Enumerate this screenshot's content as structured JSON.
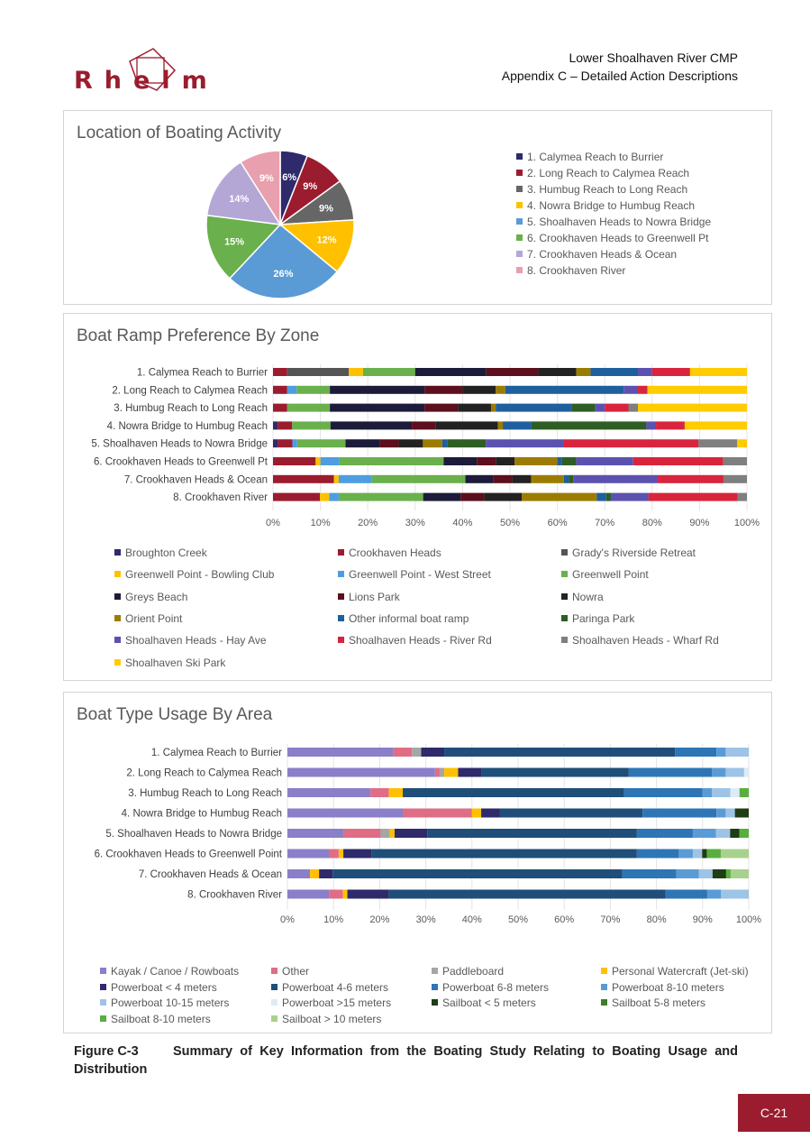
{
  "header": {
    "logo_text": "Rhelm",
    "doc_title": "Lower Shoalhaven River CMP",
    "doc_subtitle": "Appendix C – Detailed Action Descriptions"
  },
  "colors": {
    "brand": "#9b1c2e",
    "ramp": [
      "#2e2a6b",
      "#9b1c2e",
      "#555555",
      "#ffc000",
      "#4d9de0",
      "#6ab04c",
      "#1c1c3a",
      "#5c0f1c",
      "#222222",
      "#9c7c00",
      "#1f5f9e",
      "#2e5e23",
      "#5b52b0",
      "#d9243d",
      "#7f7f7f",
      "#ffcc00"
    ],
    "boat": [
      "#8a7fc8",
      "#e06d86",
      "#a6a6a6",
      "#ffc000",
      "#2e2a6b",
      "#1f4e79",
      "#2e75b6",
      "#5b9bd5",
      "#9dc3e6",
      "#ddebf7",
      "#1e3d14",
      "#3e7d2a",
      "#5aae3f",
      "#a9d18e"
    ]
  },
  "chart_data": [
    {
      "type": "pie",
      "title": "Location of Boating Activity",
      "categories": [
        "1. Calymea Reach to Burrier",
        "2. Long Reach to Calymea Reach",
        "3. Humbug Reach to Long Reach",
        "4. Nowra Bridge to Humbug Reach",
        "5. Shoalhaven Heads to Nowra Bridge",
        "6. Crookhaven Heads to Greenwell Pt",
        "7. Crookhaven Heads & Ocean",
        "8. Crookhaven River"
      ],
      "values": [
        6,
        9,
        9,
        12,
        26,
        15,
        14,
        9
      ],
      "data_labels": [
        "6%",
        "9%",
        "9%",
        "12%",
        "26%",
        "15%",
        "14%",
        "9%"
      ],
      "colors": [
        "#2e2a6b",
        "#9b1c2e",
        "#666666",
        "#ffc000",
        "#5b9bd5",
        "#6ab04c",
        "#b4a7d6",
        "#e8a0ae"
      ],
      "legend": "right"
    },
    {
      "type": "bar",
      "orientation": "horizontal",
      "stacked": "percent",
      "title": "Boat Ramp Preference By Zone",
      "categories": [
        "1. Calymea Reach to Burrier",
        "2. Long Reach to Calymea Reach",
        "3. Humbug Reach to Long Reach",
        "4. Nowra Bridge to Humbug Reach",
        "5. Shoalhaven Heads to Nowra Bridge",
        "6. Crookhaven Heads to Greenwell Pt",
        "7. Crookhaven Heads & Ocean",
        "8. Crookhaven River"
      ],
      "xticks": [
        "0%",
        "10%",
        "20%",
        "30%",
        "40%",
        "50%",
        "60%",
        "70%",
        "80%",
        "90%",
        "100%"
      ],
      "xlim": [
        0,
        100
      ],
      "legend": "bottom",
      "series": [
        {
          "name": "Broughton Creek",
          "values": [
            0,
            0,
            0,
            1,
            1,
            0,
            0,
            0
          ]
        },
        {
          "name": "Crookhaven Heads",
          "values": [
            3,
            3,
            3,
            3,
            3,
            9,
            13,
            10
          ]
        },
        {
          "name": "Grady's Riverside Retreat",
          "values": [
            13,
            0,
            0,
            0,
            0,
            0,
            0,
            0
          ]
        },
        {
          "name": "Greenwell Point - Bowling Club",
          "values": [
            3,
            0,
            0,
            0,
            0,
            1,
            1,
            2
          ]
        },
        {
          "name": "Greenwell Point - West Street",
          "values": [
            0,
            2,
            0,
            0,
            1,
            4,
            7,
            2
          ]
        },
        {
          "name": "Greenwell Point",
          "values": [
            11,
            7,
            9,
            8,
            10,
            22,
            20,
            18
          ]
        },
        {
          "name": "Greys Beach",
          "values": [
            15,
            20,
            20,
            17,
            7,
            7,
            6,
            8
          ]
        },
        {
          "name": "Lions Park",
          "values": [
            11,
            8,
            7,
            5,
            4,
            4,
            4,
            5
          ]
        },
        {
          "name": "Nowra",
          "values": [
            8,
            7,
            7,
            13,
            5,
            4,
            4,
            8
          ]
        },
        {
          "name": "Orient Point",
          "values": [
            3,
            2,
            1,
            1,
            4,
            9,
            7,
            16
          ]
        },
        {
          "name": "Other informal boat ramp",
          "values": [
            10,
            25,
            16,
            6,
            1,
            1,
            1,
            2
          ]
        },
        {
          "name": "Paringa Park",
          "values": [
            0,
            0,
            5,
            24,
            8,
            3,
            1,
            1
          ]
        },
        {
          "name": "Shoalhaven Heads - Hay Ave",
          "values": [
            3,
            3,
            2,
            2,
            16,
            12,
            18,
            8
          ]
        },
        {
          "name": "Shoalhaven Heads - River Rd",
          "values": [
            8,
            2,
            5,
            6,
            28,
            19,
            14,
            19
          ]
        },
        {
          "name": "Shoalhaven Heads - Wharf Rd",
          "values": [
            0,
            0,
            2,
            0,
            8,
            5,
            5,
            2
          ]
        },
        {
          "name": "Shoalhaven Ski Park",
          "values": [
            12,
            21,
            23,
            13,
            2,
            0,
            0,
            0
          ]
        }
      ]
    },
    {
      "type": "bar",
      "orientation": "horizontal",
      "stacked": "percent",
      "title": "Boat Type Usage By Area",
      "categories": [
        "1. Calymea Reach to Burrier",
        "2. Long Reach to Calymea Reach",
        "3. Humbug Reach to Long Reach",
        "4. Nowra Bridge to Humbug Reach",
        "5. Shoalhaven Heads to Nowra Bridge",
        "6. Crookhaven Heads to Greenwell Point",
        "7. Crookhaven Heads & Ocean",
        "8. Crookhaven River"
      ],
      "xticks": [
        "0%",
        "10%",
        "20%",
        "30%",
        "40%",
        "50%",
        "60%",
        "70%",
        "80%",
        "90%",
        "100%"
      ],
      "xlim": [
        0,
        100
      ],
      "legend": "bottom",
      "series": [
        {
          "name": "Kayak / Canoe / Rowboats",
          "values": [
            23,
            32,
            18,
            25,
            12,
            9,
            5,
            9
          ]
        },
        {
          "name": "Other",
          "values": [
            4,
            1,
            4,
            15,
            8,
            2,
            0,
            3
          ]
        },
        {
          "name": "Paddleboard",
          "values": [
            2,
            1,
            0,
            0,
            2,
            0,
            0,
            0
          ]
        },
        {
          "name": "Personal Watercraft (Jet-ski)",
          "values": [
            0,
            3,
            3,
            2,
            1,
            1,
            2,
            1
          ]
        },
        {
          "name": "Powerboat < 4 meters",
          "values": [
            5,
            5,
            0,
            4,
            7,
            6,
            3,
            9
          ]
        },
        {
          "name": "Powerboat 4-6 meters",
          "values": [
            50,
            32,
            48,
            31,
            45,
            57,
            64,
            60
          ]
        },
        {
          "name": "Powerboat 6-8 meters",
          "values": [
            9,
            18,
            17,
            16,
            12,
            9,
            12,
            9
          ]
        },
        {
          "name": "Powerboat 8-10 meters",
          "values": [
            2,
            3,
            2,
            2,
            5,
            3,
            5,
            3
          ]
        },
        {
          "name": "Powerboat 10-15 meters",
          "values": [
            5,
            4,
            4,
            2,
            3,
            2,
            3,
            6
          ]
        },
        {
          "name": "Powerboat >15 meters",
          "values": [
            0,
            1,
            2,
            0,
            0,
            0,
            0,
            0
          ]
        },
        {
          "name": "Sailboat < 5 meters",
          "values": [
            0,
            0,
            0,
            3,
            2,
            1,
            3,
            0
          ]
        },
        {
          "name": "Sailboat 5-8 meters",
          "values": [
            0,
            0,
            0,
            0,
            0,
            0,
            0,
            0
          ]
        },
        {
          "name": "Sailboat 8-10 meters",
          "values": [
            0,
            0,
            2,
            0,
            2,
            3,
            1,
            0
          ]
        },
        {
          "name": "Sailboat > 10 meters",
          "values": [
            0,
            0,
            0,
            0,
            0,
            6,
            4,
            0
          ]
        }
      ]
    }
  ],
  "caption": {
    "label": "Figure C-3",
    "text": "Summary of Key Information from the Boating Study Relating to Boating Usage and Distribution"
  },
  "page_number": "C-21"
}
